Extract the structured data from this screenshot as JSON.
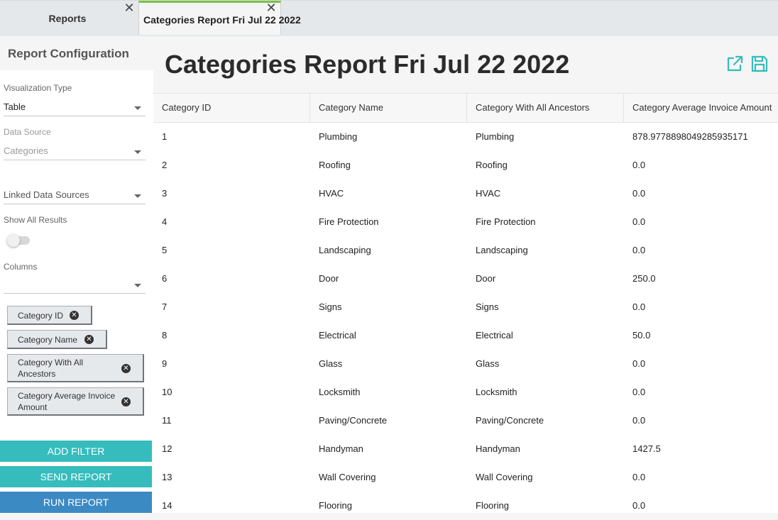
{
  "tabs": [
    {
      "label": "Reports",
      "active": false
    },
    {
      "label": "Categories Report Fri Jul 22 2022",
      "active": true
    }
  ],
  "sidebar": {
    "title": "Report Configuration",
    "visualization": {
      "label": "Visualization Type",
      "value": "Table"
    },
    "data_source": {
      "label": "Data Source",
      "value": "Categories"
    },
    "linked_sources": {
      "value": "Linked Data Sources"
    },
    "show_all": {
      "label": "Show All Results",
      "on": false
    },
    "columns": {
      "label": "Columns",
      "value": ""
    },
    "chips": [
      {
        "label": "Category ID"
      },
      {
        "label": "Category Name"
      },
      {
        "label": "Category With All Ancestors"
      },
      {
        "label": "Category Average Invoice Amount"
      }
    ],
    "buttons": {
      "add_filter": "ADD FILTER",
      "send_report": "SEND REPORT",
      "run_report": "RUN REPORT"
    }
  },
  "main": {
    "title": "Categories Report Fri Jul 22 2022",
    "icons": {
      "export": "external-link-icon",
      "save": "save-icon"
    },
    "accent": "#36bcbc"
  },
  "table": {
    "columns": [
      "Category ID",
      "Category Name",
      "Category With All Ancestors",
      "Category Average Invoice Amount"
    ],
    "rows": [
      [
        "1",
        "Plumbing",
        "Plumbing",
        "878.9778898049285935171"
      ],
      [
        "2",
        "Roofing",
        "Roofing",
        "0.0"
      ],
      [
        "3",
        "HVAC",
        "HVAC",
        "0.0"
      ],
      [
        "4",
        "Fire Protection",
        "Fire Protection",
        "0.0"
      ],
      [
        "5",
        "Landscaping",
        "Landscaping",
        "0.0"
      ],
      [
        "6",
        "Door",
        "Door",
        "250.0"
      ],
      [
        "7",
        "Signs",
        "Signs",
        "0.0"
      ],
      [
        "8",
        "Electrical",
        "Electrical",
        "50.0"
      ],
      [
        "9",
        "Glass",
        "Glass",
        "0.0"
      ],
      [
        "10",
        "Locksmith",
        "Locksmith",
        "0.0"
      ],
      [
        "11",
        "Paving/Concrete",
        "Paving/Concrete",
        "0.0"
      ],
      [
        "12",
        "Handyman",
        "Handyman",
        "1427.5"
      ],
      [
        "13",
        "Wall Covering",
        "Wall Covering",
        "0.0"
      ],
      [
        "14",
        "Flooring",
        "Flooring",
        "0.0"
      ]
    ]
  }
}
